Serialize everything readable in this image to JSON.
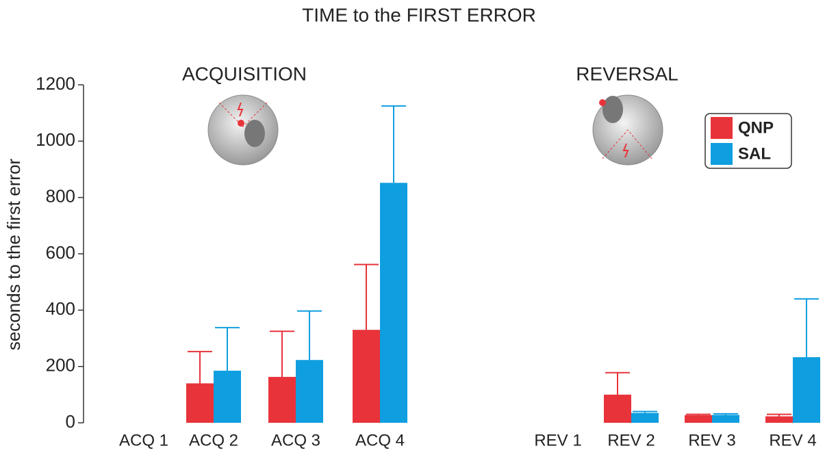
{
  "chart_data": {
    "type": "bar",
    "title": "TIME to the FIRST ERROR",
    "y_label": "seconds to the first error",
    "annotations": [
      "ACQUISITION",
      "REVERSAL"
    ],
    "categories": [
      "ACQ 1",
      "ACQ 2",
      "ACQ 3",
      "ACQ 4",
      "REV 1",
      "REV 2",
      "REV 3",
      "REV 4"
    ],
    "series": [
      {
        "name": "QNP",
        "color": "#e8333a",
        "values": [
          null,
          140,
          163,
          330,
          null,
          100,
          27,
          23
        ],
        "errors": [
          null,
          113,
          162,
          232,
          null,
          78,
          3,
          7
        ]
      },
      {
        "name": "SAL",
        "color": "#0f9ee0",
        "values": [
          null,
          185,
          223,
          852,
          null,
          35,
          28,
          233
        ],
        "errors": [
          null,
          153,
          174,
          273,
          null,
          5,
          4,
          207
        ]
      }
    ],
    "ylim": [
      0,
      1200
    ],
    "yticks": [
      0,
      200,
      400,
      600,
      800,
      1000,
      1200
    ]
  }
}
